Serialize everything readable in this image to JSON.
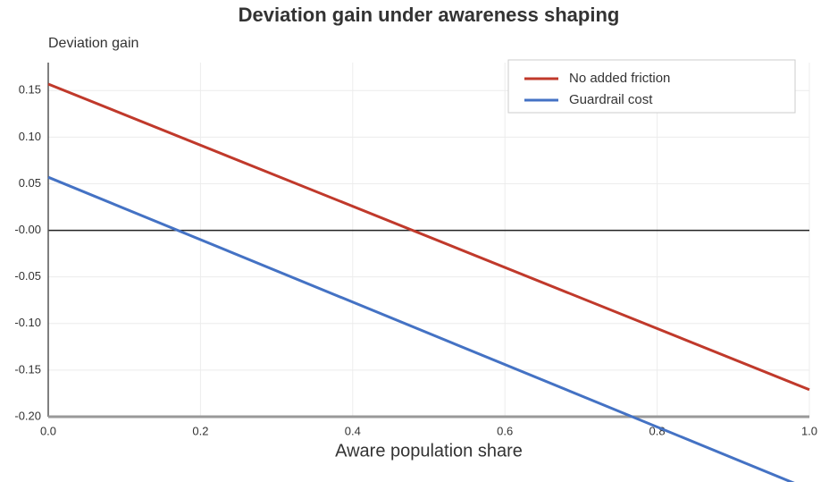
{
  "chart_data": {
    "type": "line",
    "title": "Deviation gain under awareness shaping",
    "y_label": "Deviation gain",
    "x_label": "Aware population share",
    "x": [
      0,
      1
    ],
    "series": [
      {
        "name": "No added friction",
        "color": "#c0392b",
        "values": [
          0.157,
          -0.171
        ]
      },
      {
        "name": "Guardrail cost",
        "color": "#4472c4",
        "values": [
          0.057,
          -0.278
        ]
      }
    ],
    "xlim": [
      0,
      1
    ],
    "xticks": [
      {
        "value": 0,
        "label": "0.0"
      },
      {
        "value": 0.2,
        "label": "0.2"
      },
      {
        "value": 0.4,
        "label": "0.4"
      },
      {
        "value": 0.6,
        "label": "0.6"
      },
      {
        "value": 0.8,
        "label": "0.8"
      },
      {
        "value": 1,
        "label": "1.0"
      }
    ],
    "ylim": [
      -0.2,
      0.18
    ],
    "yticks": [
      {
        "value": -0.2,
        "label": "-0.20"
      },
      {
        "value": -0.15,
        "label": "-0.15"
      },
      {
        "value": -0.1,
        "label": "-0.10"
      },
      {
        "value": -0.05,
        "label": "-0.05"
      },
      {
        "value": 0,
        "label": "-0.00"
      },
      {
        "value": 0.05,
        "label": "0.05"
      },
      {
        "value": 0.1,
        "label": "0.10"
      },
      {
        "value": 0.15,
        "label": "0.15"
      }
    ],
    "grid": true,
    "legend": "upper right"
  }
}
